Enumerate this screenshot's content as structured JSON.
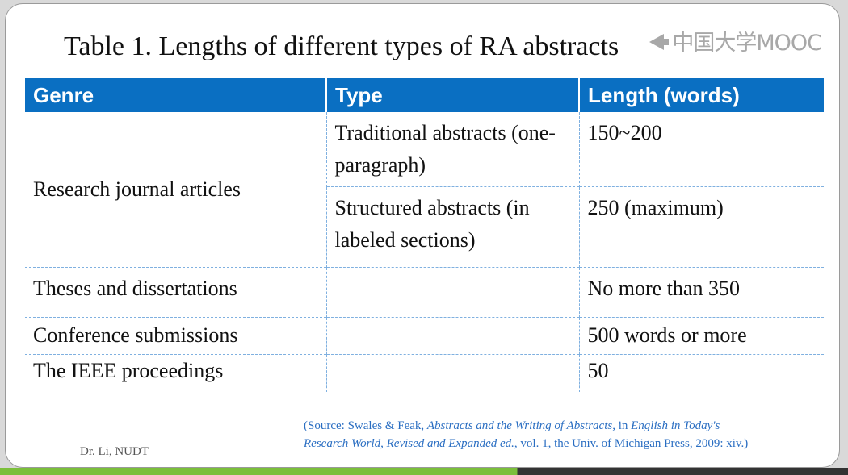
{
  "title": "Table 1.  Lengths of different types of RA abstracts",
  "logo": {
    "icon": "mooc-logo-icon",
    "text": "中国大学MOOC"
  },
  "table": {
    "headers": [
      "Genre",
      "Type",
      "Length (words)"
    ],
    "header_color": "#0a6fc2",
    "rows": [
      {
        "genre": "Research journal articles",
        "type": "Traditional  abstracts (one-paragraph)",
        "length": "150~200"
      },
      {
        "genre": "",
        "type": "Structured  abstracts (in labeled sections)",
        "length": "250 (maximum)"
      },
      {
        "genre": "Theses and dissertations",
        "type": "",
        "length": "No more than 350"
      },
      {
        "genre": "Conference  submissions",
        "type": "",
        "length": "500 words or more"
      },
      {
        "genre": "The IEEE proceedings",
        "type": "",
        "length": "50"
      }
    ]
  },
  "source": {
    "line1_prefix": "(Source:  Swales  & Feak, ",
    "book_title": "Abstracts and the Writing of Abstracts,",
    "line1_mid": " in ",
    "series_a": "English in Today's",
    "series_b": "Research World, Revised and Expanded ed.",
    "line2_rest": ", vol.  1, the Univ.  of Michigan  Press, 2009: xiv.)"
  },
  "author": "Dr. Li, NUDT"
}
